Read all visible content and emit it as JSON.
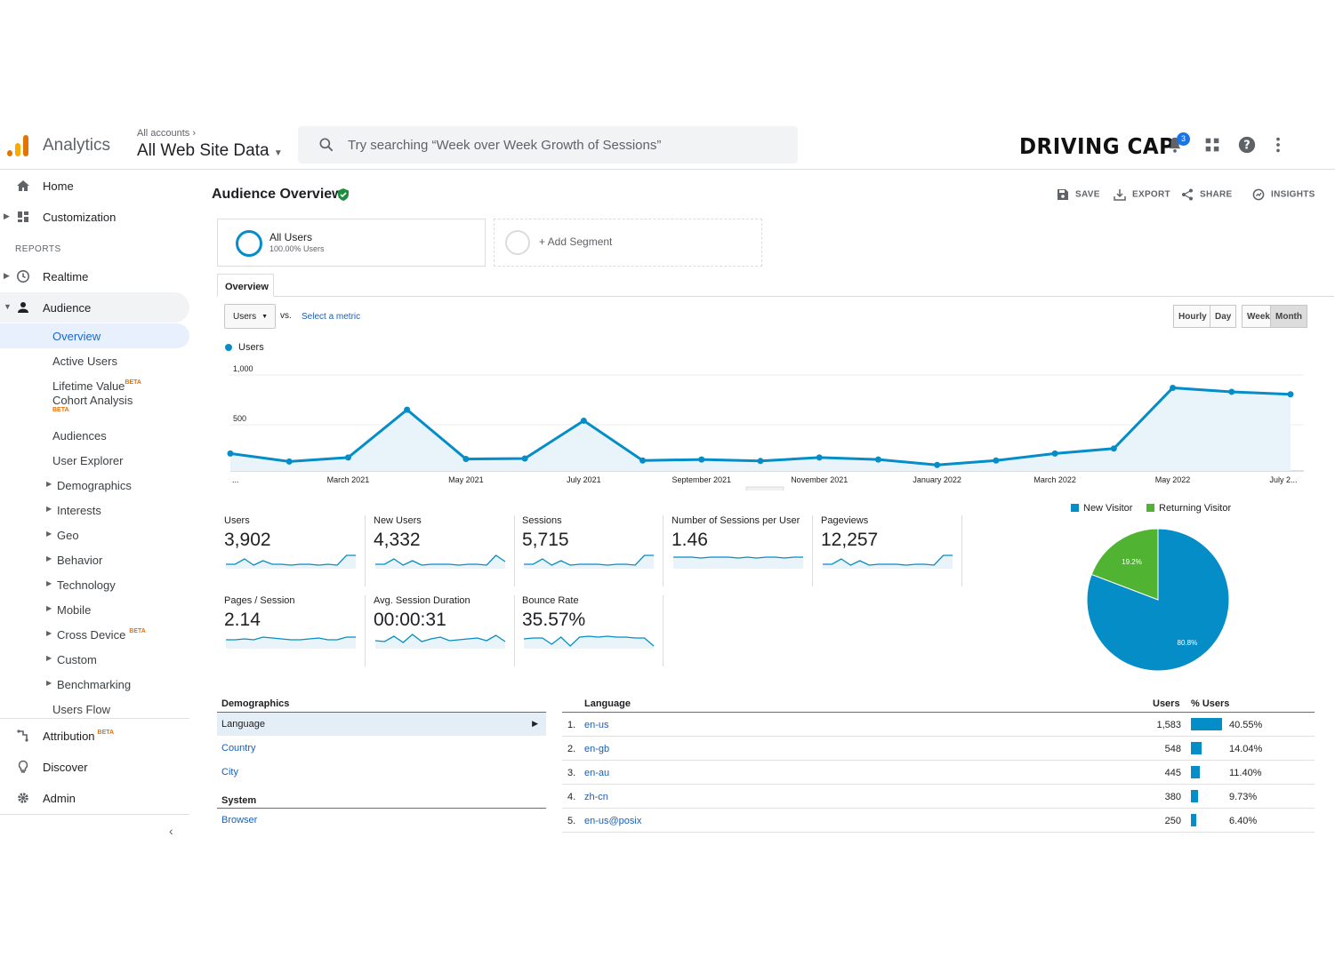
{
  "header": {
    "brand": "Analytics",
    "account_crumb": "All accounts",
    "property": "All Web Site Data",
    "search_placeholder": "Try searching “Week over Week Growth of Sessions”",
    "promo_logo_text": "DRIVING CAP",
    "notification_count": "3"
  },
  "sidebar": {
    "home": "Home",
    "customization": "Customization",
    "reports_header": "REPORTS",
    "realtime": "Realtime",
    "audience": "Audience",
    "audience_items": [
      {
        "label": "Overview"
      },
      {
        "label": "Active Users"
      },
      {
        "label": "Lifetime Value",
        "badge": "BETA"
      },
      {
        "label": "Cohort Analysis",
        "badge": "BETA"
      },
      {
        "label": "Audiences"
      },
      {
        "label": "User Explorer"
      },
      {
        "label": "Demographics"
      },
      {
        "label": "Interests"
      },
      {
        "label": "Geo"
      },
      {
        "label": "Behavior"
      },
      {
        "label": "Technology"
      },
      {
        "label": "Mobile"
      },
      {
        "label": "Cross Device",
        "badge": "BETA"
      },
      {
        "label": "Custom"
      },
      {
        "label": "Benchmarking"
      },
      {
        "label": "Users Flow"
      }
    ],
    "attribution": "Attribution",
    "attribution_badge": "BETA",
    "discover": "Discover",
    "admin": "Admin"
  },
  "page": {
    "title": "Audience Overview",
    "actions": {
      "save": "SAVE",
      "export": "EXPORT",
      "share": "SHARE",
      "insights": "INSIGHTS"
    },
    "segment": {
      "name": "All Users",
      "sub": "100.00% Users",
      "add": "+ Add Segment"
    },
    "tab": "Overview",
    "metric_select": "Users",
    "vs": "vs.",
    "select_metric": "Select a metric",
    "granularity": [
      "Hourly",
      "Day",
      "Week",
      "Month"
    ],
    "granularity_selected": "Month",
    "legend": "Users"
  },
  "chart_data": {
    "type": "area",
    "series": [
      {
        "name": "Users",
        "values": [
          175,
          95,
          135,
          615,
          120,
          125,
          505,
          105,
          115,
          100,
          135,
          115,
          60,
          105,
          175,
          225,
          835,
          795,
          770
        ]
      }
    ],
    "x_tick_labels": [
      "...",
      "March 2021",
      "May 2021",
      "July 2021",
      "September 2021",
      "November 2021",
      "January 2022",
      "March 2022",
      "May 2022",
      "July 2..."
    ],
    "y_tick_labels": [
      "1,000",
      "500"
    ],
    "ylim": [
      0,
      1000
    ],
    "color": "#058dc7"
  },
  "kpis": [
    {
      "name": "Users",
      "value": "3,902"
    },
    {
      "name": "New Users",
      "value": "4,332"
    },
    {
      "name": "Sessions",
      "value": "5,715"
    },
    {
      "name": "Number of Sessions per User",
      "value": "1.46"
    },
    {
      "name": "Pageviews",
      "value": "12,257"
    },
    {
      "name": "Pages / Session",
      "value": "2.14"
    },
    {
      "name": "Avg. Session Duration",
      "value": "00:00:31"
    },
    {
      "name": "Bounce Rate",
      "value": "35.57%"
    }
  ],
  "pie": {
    "type": "pie",
    "slices": [
      {
        "name": "New Visitor",
        "value": 80.8,
        "label": "80.8%",
        "color": "#058dc7"
      },
      {
        "name": "Returning Visitor",
        "value": 19.2,
        "label": "19.2%",
        "color": "#50b432"
      }
    ]
  },
  "demographics": {
    "header": "Demographics",
    "items": [
      "Language",
      "Country",
      "City"
    ],
    "selected": "Language",
    "system_header": "System",
    "system_items": [
      "Browser"
    ]
  },
  "language_table": {
    "headers": {
      "dimension": "Language",
      "users": "Users",
      "pct": "% Users"
    },
    "rows": [
      {
        "num": "1.",
        "lang": "en-us",
        "users": "1,583",
        "pct": "40.55%",
        "share": 40.55
      },
      {
        "num": "2.",
        "lang": "en-gb",
        "users": "548",
        "pct": "14.04%",
        "share": 14.04
      },
      {
        "num": "3.",
        "lang": "en-au",
        "users": "445",
        "pct": "11.40%",
        "share": 11.4
      },
      {
        "num": "4.",
        "lang": "zh-cn",
        "users": "380",
        "pct": "9.73%",
        "share": 9.73
      },
      {
        "num": "5.",
        "lang": "en-us@posix",
        "users": "250",
        "pct": "6.40%",
        "share": 6.4
      }
    ]
  }
}
